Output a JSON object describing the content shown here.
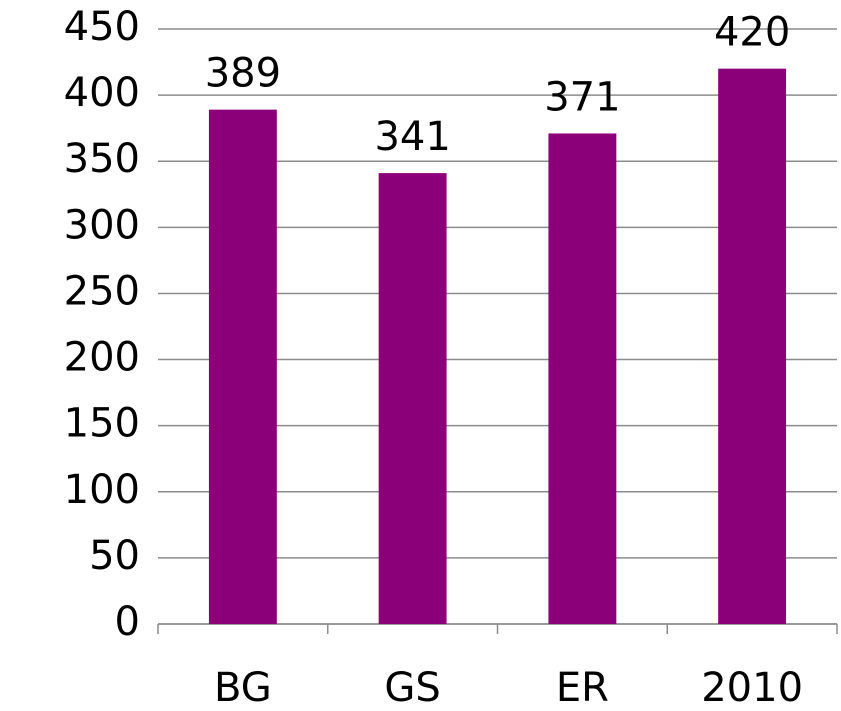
{
  "chart_data": {
    "type": "bar",
    "categories": [
      "BG",
      "GS",
      "ER",
      "2010"
    ],
    "values": [
      389,
      341,
      371,
      420
    ],
    "color": "#8b0079",
    "ylim": [
      0,
      450
    ],
    "yticks": [
      0,
      50,
      100,
      150,
      200,
      250,
      300,
      350,
      400,
      450
    ],
    "grid": true
  }
}
